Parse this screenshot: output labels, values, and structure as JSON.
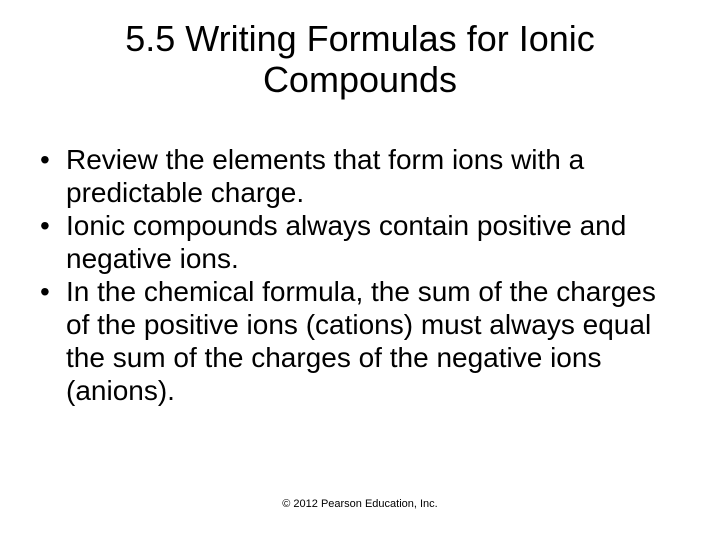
{
  "title": "5.5 Writing Formulas for Ionic Compounds",
  "bullets": [
    "Review the elements that form ions with a predictable charge.",
    "Ionic compounds always contain positive and negative ions.",
    "In the chemical formula, the sum of the charges of the positive ions (cations) must always equal the sum of the charges of the negative ions (anions)."
  ],
  "footer": "© 2012 Pearson Education, Inc.",
  "style": {
    "background_color": "#ffffff",
    "text_color": "#000000",
    "title_fontsize": 36,
    "title_fontweight": 400,
    "body_fontsize": 28,
    "footer_fontsize": 11,
    "font_family": "Arial"
  }
}
